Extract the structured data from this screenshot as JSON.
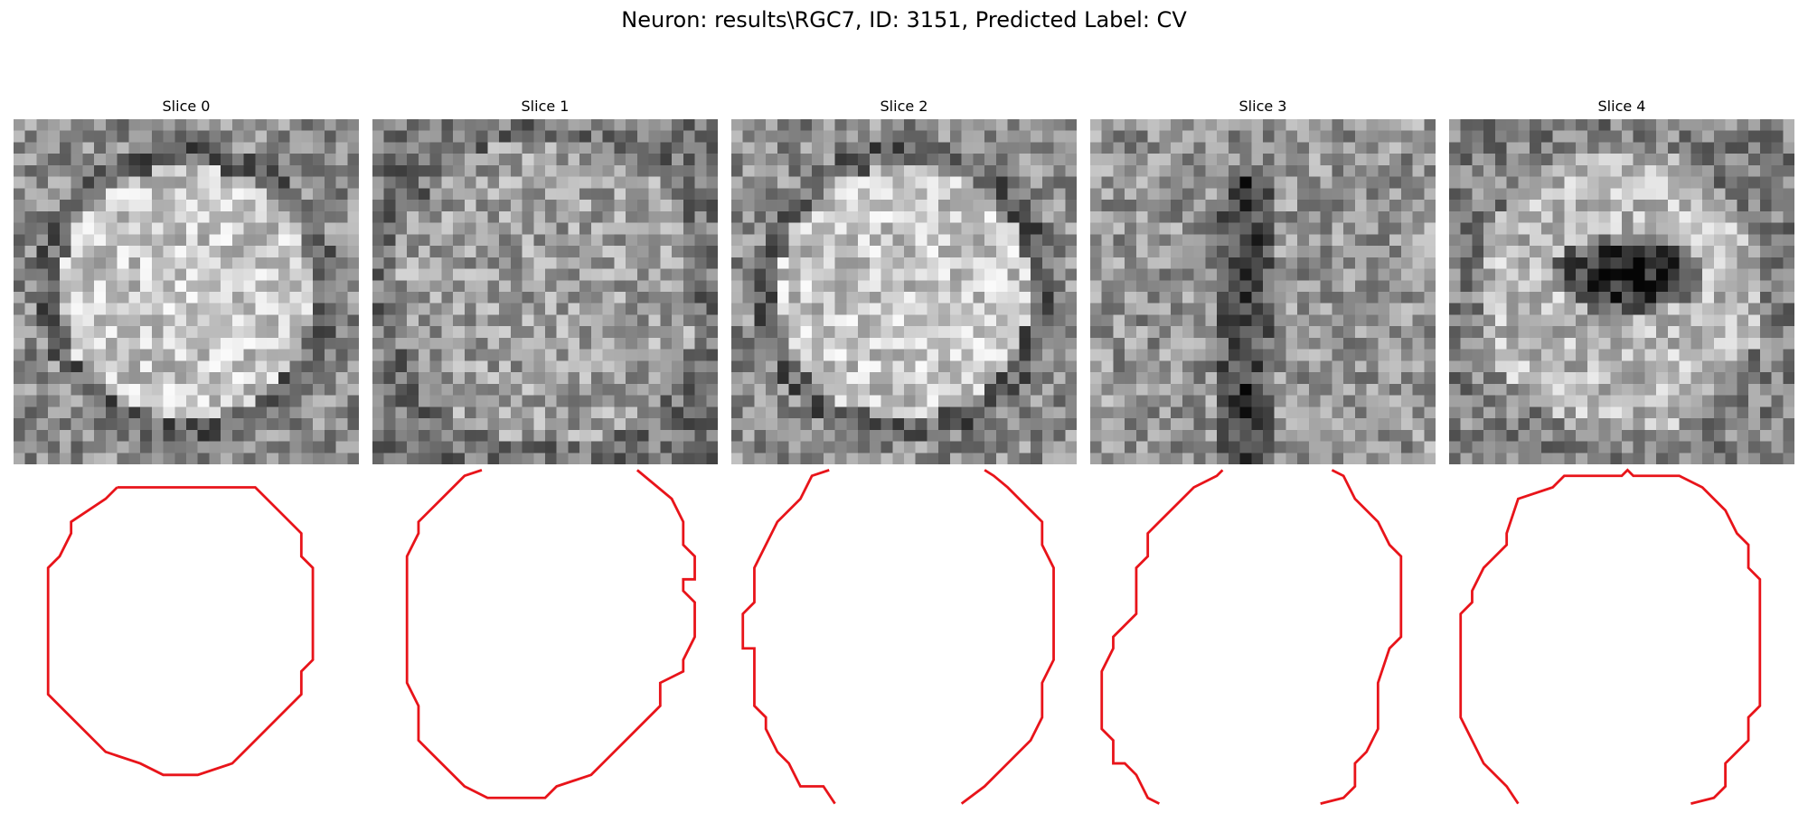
{
  "figure": {
    "title": "Neuron: results\\RGC7, ID: 3151, Predicted Label: CV"
  },
  "colors": {
    "contour": "#e8141a"
  },
  "panels": [
    {
      "title": "Slice 0",
      "pattern": "bright-ring"
    },
    {
      "title": "Slice 1",
      "pattern": "uniform"
    },
    {
      "title": "Slice 2",
      "pattern": "bright-ring"
    },
    {
      "title": "Slice 3",
      "pattern": "dark-vertical"
    },
    {
      "title": "Slice 4",
      "pattern": "dark-center"
    }
  ]
}
